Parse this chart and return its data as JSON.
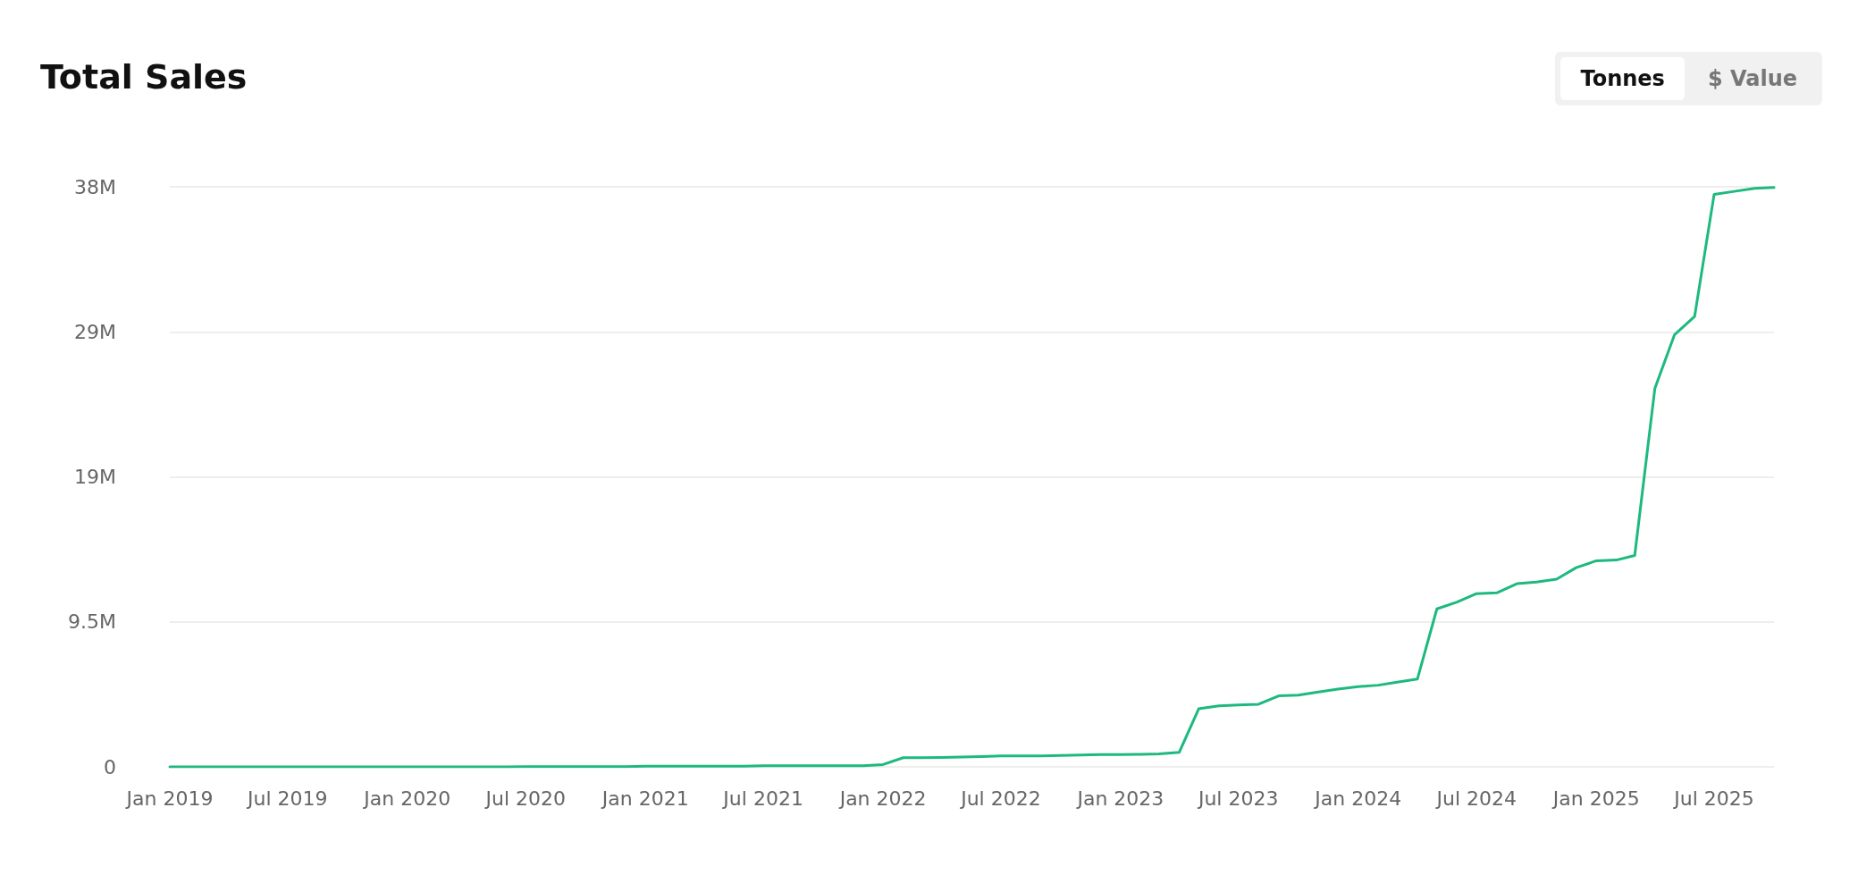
{
  "chart_data": {
    "type": "line",
    "title": "Total Sales",
    "annotations": [
      "Tonnes",
      "$ Value"
    ],
    "x": [
      "2019-01",
      "2019-02",
      "2019-03",
      "2019-04",
      "2019-05",
      "2019-06",
      "2019-07",
      "2019-08",
      "2019-09",
      "2019-10",
      "2019-11",
      "2019-12",
      "2020-01",
      "2020-02",
      "2020-03",
      "2020-04",
      "2020-05",
      "2020-06",
      "2020-07",
      "2020-08",
      "2020-09",
      "2020-10",
      "2020-11",
      "2020-12",
      "2021-01",
      "2021-02",
      "2021-03",
      "2021-04",
      "2021-05",
      "2021-06",
      "2021-07",
      "2021-08",
      "2021-09",
      "2021-10",
      "2021-11",
      "2021-12",
      "2022-01",
      "2022-02",
      "2022-03",
      "2022-04",
      "2022-05",
      "2022-06",
      "2022-07",
      "2022-08",
      "2022-09",
      "2022-10",
      "2022-11",
      "2022-12",
      "2023-01",
      "2023-02",
      "2023-03",
      "2023-04",
      "2023-05",
      "2023-06",
      "2023-07",
      "2023-08",
      "2023-09",
      "2023-10",
      "2023-11",
      "2023-12",
      "2024-01",
      "2024-02",
      "2024-03",
      "2024-04",
      "2024-05",
      "2024-06",
      "2024-07",
      "2024-08",
      "2024-09",
      "2024-10",
      "2024-11",
      "2024-12",
      "2025-01",
      "2025-02",
      "2025-03",
      "2025-04",
      "2025-05",
      "2025-06",
      "2025-07",
      "2025-08",
      "2025-09",
      "2025-10"
    ],
    "series": [
      {
        "color": "#1db97f",
        "values": [
          0,
          0,
          0,
          0,
          0,
          0,
          0,
          0,
          0,
          0,
          0,
          0,
          0,
          0,
          0,
          0,
          0,
          0,
          20000,
          20000,
          20000,
          20000,
          20000,
          20000,
          50000,
          50000,
          50000,
          50000,
          50000,
          50000,
          80000,
          80000,
          80000,
          80000,
          80000,
          80000,
          150000,
          600000,
          600000,
          620000,
          650000,
          680000,
          720000,
          720000,
          720000,
          750000,
          780000,
          800000,
          800000,
          820000,
          850000,
          950000,
          3800000,
          4000000,
          4050000,
          4100000,
          4650000,
          4700000,
          4900000,
          5100000,
          5250000,
          5350000,
          5550000,
          5750000,
          10350000,
          10800000,
          11350000,
          11400000,
          12000000,
          12100000,
          12300000,
          13050000,
          13500000,
          13550000,
          13850000,
          24800000,
          28300000,
          29500000,
          37500000,
          37700000,
          37900000,
          37950000
        ]
      }
    ],
    "xlim": [
      "2019-01",
      "2025-10"
    ],
    "xticks": [
      {
        "value": "2019-01",
        "label": "Jan 2019"
      },
      {
        "value": "2019-07",
        "label": "Jul 2019"
      },
      {
        "value": "2020-01",
        "label": "Jan 2020"
      },
      {
        "value": "2020-07",
        "label": "Jul 2020"
      },
      {
        "value": "2021-01",
        "label": "Jan 2021"
      },
      {
        "value": "2021-07",
        "label": "Jul 2021"
      },
      {
        "value": "2022-01",
        "label": "Jan 2022"
      },
      {
        "value": "2022-07",
        "label": "Jul 2022"
      },
      {
        "value": "2023-01",
        "label": "Jan 2023"
      },
      {
        "value": "2023-07",
        "label": "Jul 2023"
      },
      {
        "value": "2024-01",
        "label": "Jan 2024"
      },
      {
        "value": "2024-07",
        "label": "Jul 2024"
      },
      {
        "value": "2025-01",
        "label": "Jan 2025"
      },
      {
        "value": "2025-07",
        "label": "Jul 2025"
      }
    ],
    "ylim": [
      0,
      38000000
    ],
    "yticks": [
      0,
      {
        "value": 9500000,
        "label": "9.5M"
      },
      {
        "value": 19000000,
        "label": "19M"
      },
      {
        "value": 28500000,
        "label": "29M"
      },
      {
        "value": 38000000,
        "label": "38M"
      }
    ],
    "grid": "y",
    "marker": "none",
    "line_style": "solid"
  }
}
